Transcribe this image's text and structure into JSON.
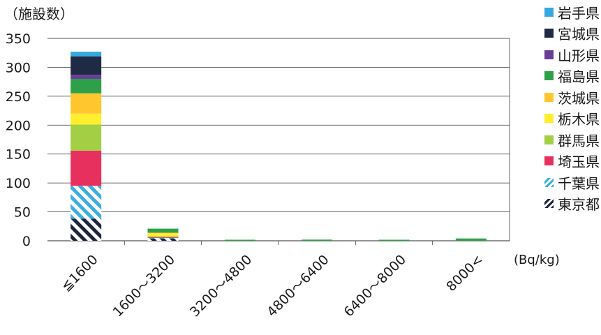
{
  "chart_data": {
    "type": "bar",
    "stacked": true,
    "ylabel": "（施設数）",
    "xlabel": "(Bq/kg)",
    "ylim": [
      0,
      350
    ],
    "yticks": [
      "0",
      "50",
      "100",
      "150",
      "200",
      "250",
      "300",
      "350"
    ],
    "grid": true,
    "legend_position": "right",
    "categories": [
      "≦1600",
      "1600～3200",
      "3200～4800",
      "4800～6400",
      "6400～8000",
      "8000<"
    ],
    "series": [
      {
        "name": "東京都",
        "color": "#1e2340",
        "pattern": "hatch",
        "values": [
          38,
          4,
          0,
          0,
          0,
          0
        ]
      },
      {
        "name": "千葉県",
        "color": "#3aaee0",
        "pattern": "hatch",
        "values": [
          57,
          1,
          0,
          0,
          0,
          0
        ]
      },
      {
        "name": "埼玉県",
        "color": "#e8305e",
        "values": [
          61,
          1,
          0,
          0,
          0,
          0
        ]
      },
      {
        "name": "群馬県",
        "color": "#a3cf45",
        "values": [
          45,
          2,
          0,
          0,
          0,
          0
        ]
      },
      {
        "name": "栃木県",
        "color": "#ffee2e",
        "values": [
          19,
          5,
          0,
          0,
          0,
          0
        ]
      },
      {
        "name": "茨城県",
        "color": "#ffc62e",
        "values": [
          35,
          1,
          0,
          0,
          0,
          0
        ]
      },
      {
        "name": "福島県",
        "color": "#2ea04a",
        "values": [
          25,
          7,
          1,
          2,
          1,
          4
        ]
      },
      {
        "name": "山形県",
        "color": "#6a3e96",
        "values": [
          7,
          0,
          0,
          0,
          0,
          0
        ]
      },
      {
        "name": "宮城県",
        "color": "#1f2a44",
        "values": [
          32,
          0,
          0,
          0,
          0,
          0
        ]
      },
      {
        "name": "岩手県",
        "color": "#35a9e0",
        "values": [
          8,
          0,
          0,
          0,
          0,
          0
        ]
      }
    ],
    "legend_order": [
      "岩手県",
      "宮城県",
      "山形県",
      "福島県",
      "茨城県",
      "栃木県",
      "群馬県",
      "埼玉県",
      "千葉県",
      "東京都"
    ]
  }
}
